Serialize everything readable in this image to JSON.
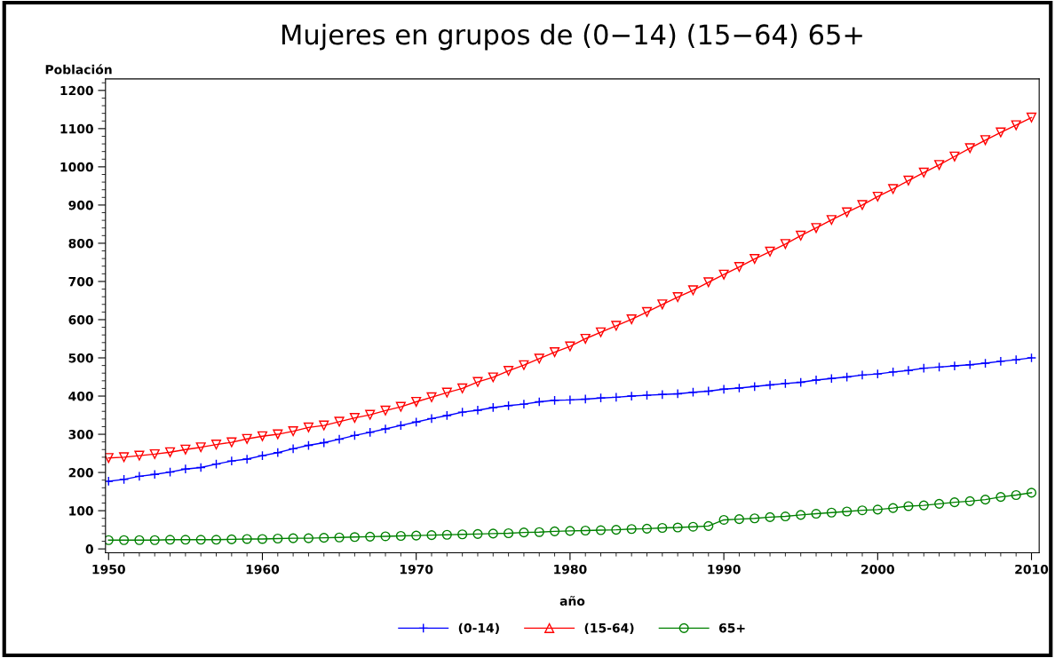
{
  "chart_data": {
    "type": "line",
    "title": "Mujeres en grupos de (0−14) (15−64) 65+",
    "xlabel": "año",
    "ylabel": "Población",
    "x": [
      1950,
      1951,
      1952,
      1953,
      1954,
      1955,
      1956,
      1957,
      1958,
      1959,
      1960,
      1961,
      1962,
      1963,
      1964,
      1965,
      1966,
      1967,
      1968,
      1969,
      1970,
      1971,
      1972,
      1973,
      1974,
      1975,
      1976,
      1977,
      1978,
      1979,
      1980,
      1981,
      1982,
      1983,
      1984,
      1985,
      1986,
      1987,
      1988,
      1989,
      1990,
      1991,
      1992,
      1993,
      1994,
      1995,
      1996,
      1997,
      1998,
      1999,
      2000,
      2001,
      2002,
      2003,
      2004,
      2005,
      2006,
      2007,
      2008,
      2009,
      2010
    ],
    "series": [
      {
        "name": "(0-14)",
        "color": "#0000ff",
        "marker": "cross",
        "values": [
          177,
          182,
          190,
          195,
          201,
          209,
          213,
          222,
          230,
          235,
          244,
          252,
          262,
          271,
          278,
          287,
          297,
          305,
          314,
          323,
          332,
          341,
          349,
          358,
          363,
          370,
          375,
          379,
          385,
          389,
          390,
          392,
          395,
          397,
          400,
          402,
          404,
          406,
          410,
          413,
          418,
          421,
          425,
          429,
          433,
          436,
          442,
          446,
          450,
          455,
          458,
          463,
          467,
          473,
          476,
          479,
          482,
          486,
          491,
          495,
          500
        ]
      },
      {
        "name": "(15-64)",
        "color": "#ff0000",
        "marker": "triangle",
        "values": [
          238,
          240,
          244,
          248,
          253,
          260,
          266,
          273,
          279,
          288,
          295,
          300,
          308,
          318,
          323,
          333,
          343,
          351,
          362,
          372,
          385,
          397,
          409,
          420,
          437,
          449,
          466,
          481,
          498,
          515,
          530,
          550,
          567,
          584,
          601,
          620,
          640,
          659,
          677,
          698,
          718,
          738,
          759,
          778,
          798,
          820,
          840,
          861,
          881,
          900,
          922,
          942,
          964,
          985,
          1005,
          1027,
          1049,
          1070,
          1090,
          1109,
          1129
        ]
      },
      {
        "name": "65+",
        "color": "#008000",
        "marker": "circle",
        "values": [
          23,
          23,
          23,
          23,
          24,
          24,
          24,
          24,
          25,
          26,
          26,
          27,
          28,
          28,
          29,
          30,
          31,
          32,
          33,
          34,
          35,
          36,
          37,
          38,
          39,
          40,
          41,
          43,
          44,
          46,
          47,
          48,
          49,
          50,
          52,
          53,
          55,
          56,
          58,
          60,
          76,
          78,
          80,
          83,
          85,
          89,
          92,
          95,
          98,
          101,
          103,
          107,
          112,
          114,
          118,
          122,
          125,
          129,
          136,
          141,
          147
        ]
      }
    ],
    "xlim": [
      1949.8,
      2010.5
    ],
    "xticks": [
      1950,
      1960,
      1970,
      1980,
      1990,
      2000,
      2010
    ],
    "ylim": [
      -10,
      1230
    ],
    "yticks": [
      0,
      100,
      200,
      300,
      400,
      500,
      600,
      700,
      800,
      900,
      1000,
      1100,
      1200
    ],
    "grid": false,
    "legend": "bottom",
    "line_style": "solid"
  }
}
